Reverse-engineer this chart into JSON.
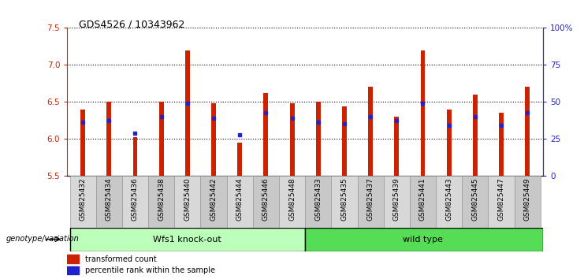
{
  "title": "GDS4526 / 10343962",
  "samples": [
    "GSM825432",
    "GSM825434",
    "GSM825436",
    "GSM825438",
    "GSM825440",
    "GSM825442",
    "GSM825444",
    "GSM825446",
    "GSM825448",
    "GSM825433",
    "GSM825435",
    "GSM825437",
    "GSM825439",
    "GSM825441",
    "GSM825443",
    "GSM825445",
    "GSM825447",
    "GSM825449"
  ],
  "bar_heights": [
    6.4,
    6.5,
    6.02,
    6.5,
    7.2,
    6.48,
    5.95,
    6.62,
    6.48,
    6.5,
    6.44,
    6.7,
    6.3,
    7.2,
    6.4,
    6.6,
    6.35,
    6.7
  ],
  "blue_values": [
    6.22,
    6.25,
    6.08,
    6.3,
    6.48,
    6.28,
    6.05,
    6.35,
    6.28,
    6.22,
    6.2,
    6.3,
    6.25,
    6.48,
    6.18,
    6.3,
    6.18,
    6.35
  ],
  "bar_color": "#cc2200",
  "blue_color": "#2222cc",
  "ylim_left": [
    5.5,
    7.5
  ],
  "ylim_right": [
    0,
    100
  ],
  "yticks_left": [
    5.5,
    6.0,
    6.5,
    7.0,
    7.5
  ],
  "yticks_right": [
    0,
    25,
    50,
    75,
    100
  ],
  "ytick_labels_right": [
    "0",
    "25",
    "50",
    "75",
    "100%"
  ],
  "group1_label": "Wfs1 knock-out",
  "group2_label": "wild type",
  "group1_color": "#bbffbb",
  "group2_color": "#55dd55",
  "group_label_prefix": "genotype/variation",
  "legend_red": "transformed count",
  "legend_blue": "percentile rank within the sample",
  "bar_width": 0.18,
  "n_group1": 9,
  "n_group2": 9
}
